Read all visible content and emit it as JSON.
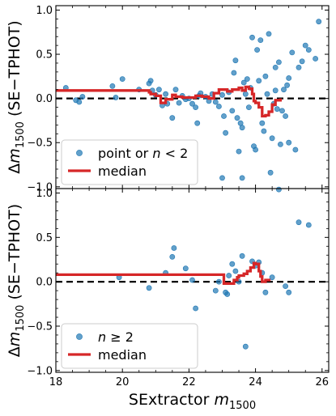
{
  "chart_data": [
    {
      "type": "scatter",
      "xlim": [
        18,
        26.2
      ],
      "ylim": [
        -1.02,
        1.05
      ],
      "xticks": [
        "18",
        "20",
        "22",
        "24",
        "26"
      ],
      "yticks": [
        "−1.0",
        "−0.5",
        "0.0",
        "0.5",
        "1.0"
      ],
      "xlabel": "",
      "ylabel": "Δm₁₅₀₀ (SE−TPHOT)",
      "ylabel_main": "Δ",
      "ylabel_m": "m",
      "ylabel_sub": "1500",
      "ylabel_tail": " (SE−TPHOT)",
      "reference_line": 0,
      "legend_position": "lower left",
      "series": [
        {
          "name": "point or n < 2",
          "legend_main": "point or ",
          "legend_var": "n",
          "legend_tail": " < 2",
          "kind": "scatter",
          "color": "#1f77b4",
          "points": [
            [
              18.3,
              0.12
            ],
            [
              18.6,
              -0.02
            ],
            [
              18.8,
              0.02
            ],
            [
              18.7,
              -0.04
            ],
            [
              19.7,
              0.14
            ],
            [
              19.8,
              0.01
            ],
            [
              20.0,
              0.22
            ],
            [
              20.5,
              0.1
            ],
            [
              20.8,
              0.17
            ],
            [
              20.85,
              0.2
            ],
            [
              20.9,
              0.09
            ],
            [
              21.0,
              0.04
            ],
            [
              21.1,
              0.1
            ],
            [
              21.2,
              -0.08
            ],
            [
              21.3,
              0.05
            ],
            [
              21.35,
              -0.06
            ],
            [
              21.5,
              -0.22
            ],
            [
              21.6,
              0.1
            ],
            [
              21.7,
              -0.05
            ],
            [
              21.8,
              0.03
            ],
            [
              21.9,
              -0.01
            ],
            [
              22.0,
              0.0
            ],
            [
              22.1,
              -0.06
            ],
            [
              22.2,
              -0.1
            ],
            [
              22.25,
              -0.28
            ],
            [
              22.3,
              0.03
            ],
            [
              22.35,
              0.06
            ],
            [
              22.5,
              0.02
            ],
            [
              22.6,
              -0.03
            ],
            [
              22.7,
              0.05
            ],
            [
              22.8,
              -0.04
            ],
            [
              22.9,
              -0.09
            ],
            [
              23.0,
              0.04
            ],
            [
              23.05,
              -0.2
            ],
            [
              23.1,
              -0.39
            ],
            [
              23.2,
              0.07
            ],
            [
              23.3,
              -0.14
            ],
            [
              23.35,
              0.29
            ],
            [
              23.4,
              0.43
            ],
            [
              23.45,
              -0.22
            ],
            [
              23.5,
              -0.6
            ],
            [
              23.55,
              -0.28
            ],
            [
              23.6,
              -0.33
            ],
            [
              23.65,
              0.18
            ],
            [
              23.7,
              0.05
            ],
            [
              23.75,
              0.22
            ],
            [
              23.8,
              -0.1
            ],
            [
              23.85,
              0.12
            ],
            [
              23.9,
              0.69
            ],
            [
              23.95,
              -0.54
            ],
            [
              24.0,
              -0.58
            ],
            [
              24.05,
              0.55
            ],
            [
              24.1,
              0.2
            ],
            [
              24.15,
              0.66
            ],
            [
              24.2,
              -0.28
            ],
            [
              24.25,
              -0.37
            ],
            [
              24.3,
              0.25
            ],
            [
              24.35,
              0.05
            ],
            [
              24.4,
              0.73
            ],
            [
              24.45,
              -0.84
            ],
            [
              24.5,
              -0.45
            ],
            [
              24.55,
              -0.06
            ],
            [
              24.6,
              0.35
            ],
            [
              24.65,
              -0.12
            ],
            [
              24.7,
              -1.03
            ],
            [
              24.75,
              -0.52
            ],
            [
              24.8,
              -0.14
            ],
            [
              24.85,
              0.1
            ],
            [
              24.9,
              -0.2
            ],
            [
              24.95,
              0.15
            ],
            [
              25.0,
              -0.5
            ],
            [
              25.1,
              0.52
            ],
            [
              25.2,
              -0.58
            ],
            [
              25.3,
              0.35
            ],
            [
              25.4,
              0.42
            ],
            [
              25.5,
              0.6
            ],
            [
              25.6,
              0.55
            ],
            [
              25.8,
              0.45
            ],
            [
              25.9,
              0.87
            ],
            [
              23.0,
              -0.9
            ],
            [
              23.6,
              -0.9
            ],
            [
              24.6,
              0.09
            ],
            [
              24.7,
              0.41
            ],
            [
              25.0,
              0.23
            ]
          ]
        },
        {
          "name": "median",
          "legend_main": "median",
          "kind": "line",
          "color": "#d62728",
          "x": [
            18,
            20.6,
            20.8,
            20.85,
            21.0,
            21.15,
            21.3,
            21.5,
            21.6,
            21.8,
            22.0,
            22.2,
            22.4,
            22.6,
            22.75,
            22.9,
            23.0,
            23.15,
            23.3,
            23.5,
            23.6,
            23.7,
            23.8,
            23.9,
            23.95,
            24.0,
            24.1,
            24.2,
            24.3,
            24.4,
            24.5,
            24.6,
            24.75
          ],
          "y": [
            0.09,
            0.09,
            0.07,
            0.05,
            0.03,
            -0.05,
            -0.01,
            0.04,
            0.02,
            0.01,
            0.01,
            0.03,
            0.02,
            0.0,
            0.06,
            0.1,
            0.1,
            0.08,
            0.1,
            0.12,
            0.09,
            0.13,
            0.11,
            0.05,
            -0.03,
            -0.05,
            -0.1,
            -0.2,
            -0.19,
            -0.15,
            -0.07,
            -0.02,
            0.0
          ]
        }
      ]
    },
    {
      "type": "scatter",
      "xlim": [
        18,
        26.2
      ],
      "ylim": [
        -1.02,
        1.05
      ],
      "xticks": [
        "18",
        "20",
        "22",
        "24",
        "26"
      ],
      "yticks": [
        "−1.0",
        "−0.5",
        "0.0",
        "0.5",
        "1.0"
      ],
      "xlabel": "SExtractor m₁₅₀₀",
      "xlabel_main": "SExtractor ",
      "xlabel_m": "m",
      "xlabel_sub": "1500",
      "ylabel": "Δm₁₅₀₀ (SE−TPHOT)",
      "ylabel_main": "Δ",
      "ylabel_m": "m",
      "ylabel_sub": "1500",
      "ylabel_tail": " (SE−TPHOT)",
      "reference_line": 0,
      "legend_position": "lower left",
      "series": [
        {
          "name": "n ≥ 2",
          "legend_main": "",
          "legend_var": "n",
          "legend_tail": " ≥ 2",
          "kind": "scatter",
          "color": "#1f77b4",
          "points": [
            [
              19.9,
              0.05
            ],
            [
              20.8,
              -0.07
            ],
            [
              21.3,
              0.1
            ],
            [
              21.5,
              0.28
            ],
            [
              21.55,
              0.38
            ],
            [
              21.9,
              0.15
            ],
            [
              22.1,
              0.02
            ],
            [
              22.2,
              -0.3
            ],
            [
              22.8,
              -0.1
            ],
            [
              22.9,
              0.0
            ],
            [
              23.1,
              -0.12
            ],
            [
              23.15,
              -0.14
            ],
            [
              23.2,
              0.07
            ],
            [
              23.3,
              0.2
            ],
            [
              23.4,
              0.12
            ],
            [
              23.5,
              0.0
            ],
            [
              23.7,
              -0.73
            ],
            [
              23.9,
              0.23
            ],
            [
              24.0,
              0.18
            ],
            [
              24.1,
              0.22
            ],
            [
              24.2,
              0.1
            ],
            [
              24.3,
              -0.12
            ],
            [
              24.5,
              0.05
            ],
            [
              24.9,
              -0.05
            ],
            [
              25.0,
              -0.12
            ],
            [
              25.3,
              0.67
            ],
            [
              25.6,
              0.64
            ],
            [
              23.6,
              0.29
            ]
          ]
        },
        {
          "name": "median",
          "legend_main": "median",
          "kind": "line",
          "color": "#d62728",
          "x": [
            18,
            21.8,
            21.85,
            23.0,
            23.05,
            23.3,
            23.35,
            23.45,
            23.5,
            23.65,
            23.75,
            23.85,
            23.95,
            24.0,
            24.1,
            24.15,
            24.2,
            24.3,
            24.45
          ],
          "y": [
            0.08,
            0.08,
            0.08,
            0.08,
            -0.02,
            -0.02,
            0.02,
            0.05,
            0.07,
            0.09,
            0.12,
            0.16,
            0.21,
            0.2,
            0.12,
            0.06,
            0.0,
            0.02,
            0.02
          ]
        }
      ]
    }
  ]
}
